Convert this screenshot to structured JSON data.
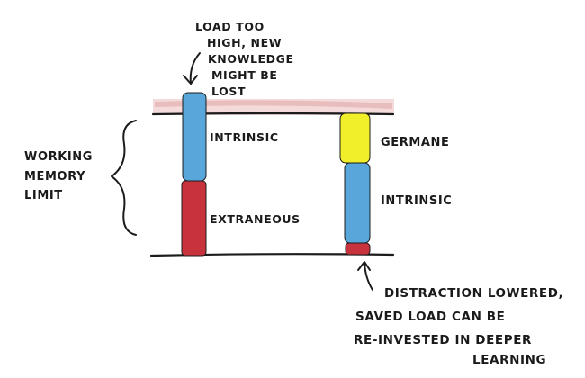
{
  "note_top": [
    "LOAD TOO",
    "HIGH, NEW",
    "KNOWLEDGE",
    "MIGHT BE",
    "LOST"
  ],
  "limit_label": [
    "WORKING",
    "MEMORY",
    "LIMIT"
  ],
  "left_bar": {
    "segments": [
      {
        "label": "INTRINSIC",
        "color": "#58a6da"
      },
      {
        "label": "EXTRANEOUS",
        "color": "#c8323c"
      }
    ]
  },
  "right_bar": {
    "segments": [
      {
        "label": "GERMANE",
        "color": "#f0ef2a"
      },
      {
        "label": "INTRINSIC",
        "color": "#58a6da"
      },
      {
        "label": "",
        "color": "#c8323c"
      }
    ]
  },
  "note_bottom": [
    "DISTRACTION LOWERED,",
    "SAVED LOAD CAN BE",
    "RE-INVESTED IN DEEPER",
    "LEARNING"
  ],
  "colors": {
    "intrinsic": "#58a6da",
    "extraneous": "#c8323c",
    "germane": "#f0ef2a",
    "overload_shade": "#e7b7b7",
    "ink": "#1c1c1c"
  }
}
